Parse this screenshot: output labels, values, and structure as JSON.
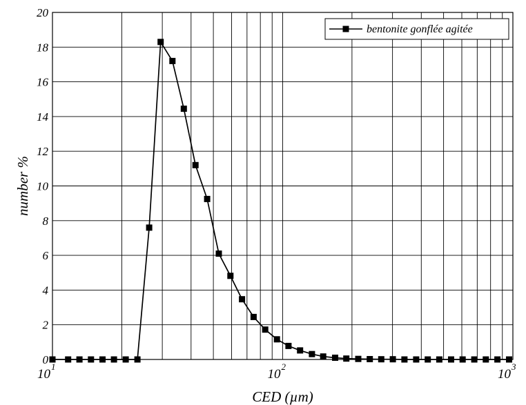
{
  "chart_data": {
    "type": "line",
    "title": "",
    "xlabel": "CED (µm)",
    "ylabel": "number %",
    "xscale": "log",
    "xlim": [
      10,
      1000
    ],
    "ylim": [
      0,
      20
    ],
    "x_ticks": [
      {
        "value": 10,
        "base": "10",
        "exp": "1"
      },
      {
        "value": 100,
        "base": "10",
        "exp": "2"
      },
      {
        "value": 1000,
        "base": "10",
        "exp": "3"
      }
    ],
    "y_ticks": [
      "0",
      "2",
      "4",
      "6",
      "8",
      "10",
      "12",
      "14",
      "16",
      "18",
      "20"
    ],
    "grid": true,
    "legend_position": "top-right",
    "series": [
      {
        "name": "bentonite gonflée agitée",
        "color": "#000000",
        "marker": "square",
        "points": [
          [
            10.0,
            0
          ],
          [
            11.7,
            0
          ],
          [
            13.1,
            0
          ],
          [
            14.7,
            0
          ],
          [
            16.5,
            0
          ],
          [
            18.5,
            0
          ],
          [
            20.8,
            0
          ],
          [
            23.4,
            0
          ],
          [
            26.3,
            7.6
          ],
          [
            29.5,
            18.3
          ],
          [
            33.2,
            17.2
          ],
          [
            37.2,
            14.45
          ],
          [
            41.8,
            11.2
          ],
          [
            47.0,
            9.25
          ],
          [
            52.8,
            6.1
          ],
          [
            59.3,
            4.82
          ],
          [
            66.6,
            3.47
          ],
          [
            74.8,
            2.45
          ],
          [
            84.0,
            1.72
          ],
          [
            94.4,
            1.16
          ],
          [
            106,
            0.78
          ],
          [
            119,
            0.52
          ],
          [
            134,
            0.31
          ],
          [
            150,
            0.17
          ],
          [
            169,
            0.1
          ],
          [
            189,
            0.05
          ],
          [
            213,
            0.03
          ],
          [
            239,
            0.02
          ],
          [
            268,
            0.01
          ],
          [
            301,
            0.01
          ],
          [
            338,
            0
          ],
          [
            380,
            0
          ],
          [
            427,
            0
          ],
          [
            479,
            0
          ],
          [
            539,
            0
          ],
          [
            605,
            0
          ],
          [
            680,
            0
          ],
          [
            763,
            0
          ],
          [
            857,
            0
          ],
          [
            963,
            0
          ]
        ]
      }
    ]
  }
}
